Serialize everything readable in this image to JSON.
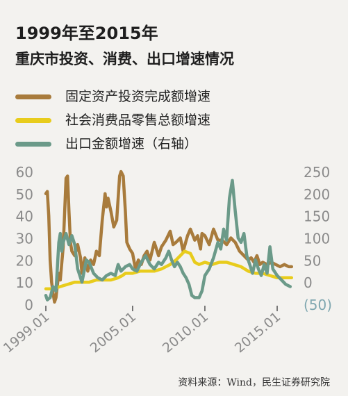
{
  "header": {
    "title": "1999年至2015年",
    "subtitle": "重庆市投资、消费、出口增速情况"
  },
  "source": "资料来源：Wind，民生证券研究院",
  "chart_data": {
    "type": "line",
    "title": "1999年至2015年 重庆市投资、消费、出口增速情况",
    "x_ticks": [
      "1999.01",
      "2005.01",
      "2010.01",
      "2015.01"
    ],
    "x_tick_values": [
      1999.0,
      2005.0,
      2010.0,
      2015.0
    ],
    "xlim": [
      1999.0,
      2016.2
    ],
    "ylim_left": [
      0,
      60
    ],
    "y_ticks_left": [
      "0",
      "10",
      "20",
      "30",
      "40",
      "50",
      "60"
    ],
    "ylim_right": [
      -50,
      250
    ],
    "y_ticks_right": [
      "(50)",
      "0",
      "50",
      "100",
      "150",
      "200",
      "250"
    ],
    "grid": false,
    "series": [
      {
        "name": "固定资产投资完成额增速",
        "axis": "left",
        "color": "#a87b3c",
        "points": [
          [
            1999.0,
            50
          ],
          [
            1999.1,
            51
          ],
          [
            1999.2,
            40
          ],
          [
            1999.3,
            20
          ],
          [
            1999.4,
            10
          ],
          [
            1999.5,
            5
          ],
          [
            1999.6,
            1
          ],
          [
            1999.7,
            3
          ],
          [
            1999.8,
            9
          ],
          [
            1999.9,
            14
          ],
          [
            2000.0,
            11
          ],
          [
            2000.2,
            26
          ],
          [
            2000.4,
            57
          ],
          [
            2000.5,
            58
          ],
          [
            2000.6,
            42
          ],
          [
            2000.7,
            28
          ],
          [
            2000.8,
            24
          ],
          [
            2001.0,
            22
          ],
          [
            2001.2,
            27
          ],
          [
            2001.4,
            21
          ],
          [
            2001.5,
            14
          ],
          [
            2001.7,
            21
          ],
          [
            2001.9,
            15
          ],
          [
            2002.1,
            20
          ],
          [
            2002.3,
            18
          ],
          [
            2002.5,
            24
          ],
          [
            2002.7,
            22
          ],
          [
            2002.9,
            38
          ],
          [
            2003.1,
            50
          ],
          [
            2003.2,
            44
          ],
          [
            2003.3,
            48
          ],
          [
            2003.5,
            42
          ],
          [
            2003.7,
            35
          ],
          [
            2003.9,
            38
          ],
          [
            2004.1,
            58
          ],
          [
            2004.2,
            60
          ],
          [
            2004.35,
            58
          ],
          [
            2004.5,
            42
          ],
          [
            2004.6,
            28
          ],
          [
            2004.8,
            25
          ],
          [
            2005.0,
            23
          ],
          [
            2005.2,
            16
          ],
          [
            2005.4,
            20
          ],
          [
            2005.6,
            18
          ],
          [
            2005.8,
            22
          ],
          [
            2006.0,
            24
          ],
          [
            2006.2,
            20
          ],
          [
            2006.5,
            28
          ],
          [
            2006.8,
            22
          ],
          [
            2007.0,
            26
          ],
          [
            2007.3,
            29
          ],
          [
            2007.6,
            33
          ],
          [
            2007.8,
            27
          ],
          [
            2008.0,
            28
          ],
          [
            2008.3,
            30
          ],
          [
            2008.5,
            24
          ],
          [
            2008.8,
            31
          ],
          [
            2009.0,
            34
          ],
          [
            2009.3,
            29
          ],
          [
            2009.5,
            31
          ],
          [
            2009.7,
            25
          ],
          [
            2009.8,
            32
          ],
          [
            2010.0,
            31
          ],
          [
            2010.3,
            27
          ],
          [
            2010.6,
            34
          ],
          [
            2010.9,
            29
          ],
          [
            2011.2,
            29
          ],
          [
            2011.5,
            27
          ],
          [
            2011.8,
            30
          ],
          [
            2012.1,
            28
          ],
          [
            2012.4,
            24
          ],
          [
            2012.7,
            22
          ],
          [
            2013.0,
            20
          ],
          [
            2013.2,
            21
          ],
          [
            2013.4,
            19
          ],
          [
            2013.6,
            22
          ],
          [
            2013.8,
            18
          ],
          [
            2014.0,
            19
          ],
          [
            2014.3,
            18
          ],
          [
            2014.6,
            19
          ],
          [
            2014.9,
            18
          ],
          [
            2015.2,
            17
          ],
          [
            2015.5,
            18
          ],
          [
            2015.8,
            17
          ],
          [
            2016.0,
            17
          ]
        ]
      },
      {
        "name": "社会消费品零售总额增速",
        "axis": "left",
        "color": "#e8cc1c",
        "points": [
          [
            1999.0,
            7
          ],
          [
            1999.5,
            7
          ],
          [
            2000.0,
            8
          ],
          [
            2000.5,
            9
          ],
          [
            2001.0,
            10
          ],
          [
            2001.5,
            10
          ],
          [
            2002.0,
            10
          ],
          [
            2002.5,
            11
          ],
          [
            2003.0,
            11
          ],
          [
            2003.5,
            11
          ],
          [
            2004.0,
            12
          ],
          [
            2004.3,
            13
          ],
          [
            2004.5,
            14
          ],
          [
            2005.0,
            14
          ],
          [
            2005.5,
            15
          ],
          [
            2006.0,
            15
          ],
          [
            2006.5,
            15
          ],
          [
            2007.0,
            16
          ],
          [
            2007.3,
            17
          ],
          [
            2007.6,
            18
          ],
          [
            2008.0,
            20
          ],
          [
            2008.3,
            22
          ],
          [
            2008.6,
            24
          ],
          [
            2009.0,
            23
          ],
          [
            2009.3,
            19
          ],
          [
            2009.6,
            18
          ],
          [
            2010.0,
            19
          ],
          [
            2010.5,
            18
          ],
          [
            2011.0,
            19
          ],
          [
            2011.5,
            19
          ],
          [
            2012.0,
            18
          ],
          [
            2012.5,
            17
          ],
          [
            2013.0,
            15
          ],
          [
            2013.5,
            14
          ],
          [
            2014.0,
            14
          ],
          [
            2014.5,
            13
          ],
          [
            2015.0,
            12
          ],
          [
            2015.5,
            12
          ],
          [
            2016.0,
            12
          ]
        ]
      },
      {
        "name": "出口金额增速（右轴）",
        "axis": "right",
        "color": "#6b9a89",
        "points": [
          [
            1999.0,
            -30
          ],
          [
            1999.1,
            -40
          ],
          [
            1999.3,
            -35
          ],
          [
            1999.5,
            -10
          ],
          [
            1999.7,
            -20
          ],
          [
            1999.9,
            90
          ],
          [
            2000.0,
            110
          ],
          [
            2000.1,
            70
          ],
          [
            2000.2,
            90
          ],
          [
            2000.4,
            110
          ],
          [
            2000.6,
            85
          ],
          [
            2000.8,
            105
          ],
          [
            2001.0,
            85
          ],
          [
            2001.2,
            30
          ],
          [
            2001.5,
            0
          ],
          [
            2001.8,
            50
          ],
          [
            2002.0,
            45
          ],
          [
            2002.3,
            20
          ],
          [
            2002.6,
            10
          ],
          [
            2002.9,
            5
          ],
          [
            2003.2,
            15
          ],
          [
            2003.5,
            20
          ],
          [
            2003.8,
            15
          ],
          [
            2004.0,
            40
          ],
          [
            2004.2,
            25
          ],
          [
            2004.5,
            35
          ],
          [
            2004.8,
            40
          ],
          [
            2005.0,
            30
          ],
          [
            2005.3,
            25
          ],
          [
            2005.6,
            45
          ],
          [
            2005.9,
            60
          ],
          [
            2006.2,
            40
          ],
          [
            2006.5,
            30
          ],
          [
            2006.8,
            45
          ],
          [
            2007.0,
            40
          ],
          [
            2007.3,
            55
          ],
          [
            2007.5,
            70
          ],
          [
            2007.7,
            50
          ],
          [
            2007.9,
            35
          ],
          [
            2008.1,
            45
          ],
          [
            2008.3,
            35
          ],
          [
            2008.5,
            20
          ],
          [
            2008.7,
            10
          ],
          [
            2008.9,
            -5
          ],
          [
            2009.1,
            -30
          ],
          [
            2009.3,
            -35
          ],
          [
            2009.6,
            -35
          ],
          [
            2009.8,
            -20
          ],
          [
            2010.0,
            15
          ],
          [
            2010.3,
            30
          ],
          [
            2010.6,
            55
          ],
          [
            2010.9,
            90
          ],
          [
            2011.1,
            75
          ],
          [
            2011.3,
            120
          ],
          [
            2011.5,
            95
          ],
          [
            2011.7,
            190
          ],
          [
            2011.9,
            230
          ],
          [
            2012.1,
            160
          ],
          [
            2012.3,
            100
          ],
          [
            2012.5,
            90
          ],
          [
            2012.7,
            110
          ],
          [
            2012.9,
            60
          ],
          [
            2013.1,
            40
          ],
          [
            2013.3,
            20
          ],
          [
            2013.5,
            50
          ],
          [
            2013.7,
            30
          ],
          [
            2013.9,
            15
          ],
          [
            2014.1,
            40
          ],
          [
            2014.3,
            20
          ],
          [
            2014.5,
            80
          ],
          [
            2014.7,
            30
          ],
          [
            2015.0,
            15
          ],
          [
            2015.3,
            5
          ],
          [
            2015.6,
            -5
          ],
          [
            2015.9,
            -10
          ]
        ]
      }
    ]
  }
}
